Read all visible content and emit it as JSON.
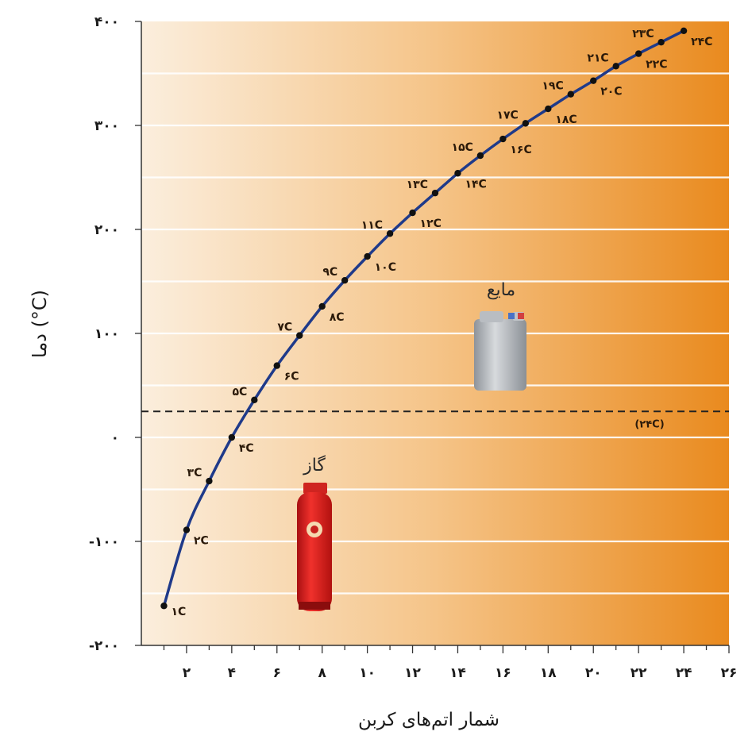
{
  "chart_data": {
    "type": "line",
    "xlabel": "شمار اتم‌های کربن",
    "ylabel": "دما (°C)",
    "xlim": [
      0,
      26
    ],
    "ylim": [
      -200,
      400
    ],
    "x_ticks": [
      2,
      4,
      6,
      8,
      10,
      12,
      14,
      16,
      18,
      20,
      22,
      24,
      26
    ],
    "x_tick_labels": [
      "۲",
      "۴",
      "۶",
      "۸",
      "۱۰",
      "۱۲",
      "۱۴",
      "۱۶",
      "۱۸",
      "۲۰",
      "۲۲",
      "۲۴",
      "۲۶"
    ],
    "y_ticks": [
      -200,
      -100,
      0,
      100,
      200,
      300,
      400
    ],
    "y_tick_labels": [
      "-۲۰۰",
      "-۱۰۰",
      "۰",
      "۱۰۰",
      "۲۰۰",
      "۳۰۰",
      "۴۰۰"
    ],
    "grid": "horizontal",
    "line_color": "#1f3a8a",
    "background_gradient": [
      "#fbeedd",
      "#e98a1e"
    ],
    "points": [
      {
        "x": 1,
        "y": -162,
        "label": "۱C"
      },
      {
        "x": 2,
        "y": -89,
        "label": "۲C"
      },
      {
        "x": 3,
        "y": -42,
        "label": "۳C"
      },
      {
        "x": 4,
        "y": 0,
        "label": "۴C"
      },
      {
        "x": 5,
        "y": 36,
        "label": "۵C"
      },
      {
        "x": 6,
        "y": 69,
        "label": "۶C"
      },
      {
        "x": 7,
        "y": 98,
        "label": "۷C"
      },
      {
        "x": 8,
        "y": 126,
        "label": "۸C"
      },
      {
        "x": 9,
        "y": 151,
        "label": "۹C"
      },
      {
        "x": 10,
        "y": 174,
        "label": "۱۰C"
      },
      {
        "x": 11,
        "y": 196,
        "label": "۱۱C"
      },
      {
        "x": 12,
        "y": 216,
        "label": "۱۲C"
      },
      {
        "x": 13,
        "y": 235,
        "label": "۱۳C"
      },
      {
        "x": 14,
        "y": 254,
        "label": "۱۴C"
      },
      {
        "x": 15,
        "y": 271,
        "label": "۱۵C"
      },
      {
        "x": 16,
        "y": 287,
        "label": "۱۶C"
      },
      {
        "x": 17,
        "y": 302,
        "label": "۱۷C"
      },
      {
        "x": 18,
        "y": 316,
        "label": "۱۸C"
      },
      {
        "x": 19,
        "y": 330,
        "label": "۱۹C"
      },
      {
        "x": 20,
        "y": 343,
        "label": "۲۰C"
      },
      {
        "x": 21,
        "y": 357,
        "label": "۲۱C"
      },
      {
        "x": 22,
        "y": 369,
        "label": "۲۲C"
      },
      {
        "x": 23,
        "y": 380,
        "label": "۲۳C"
      },
      {
        "x": 24,
        "y": 391,
        "label": "۲۴C"
      }
    ],
    "reference_line": {
      "y": 25,
      "label": "(۲۴C)",
      "style": "dashed"
    },
    "regions": [
      {
        "label": "مایع",
        "icon": "jerrycan-icon"
      },
      {
        "label": "گاز",
        "icon": "gas-cylinder-icon"
      }
    ]
  }
}
